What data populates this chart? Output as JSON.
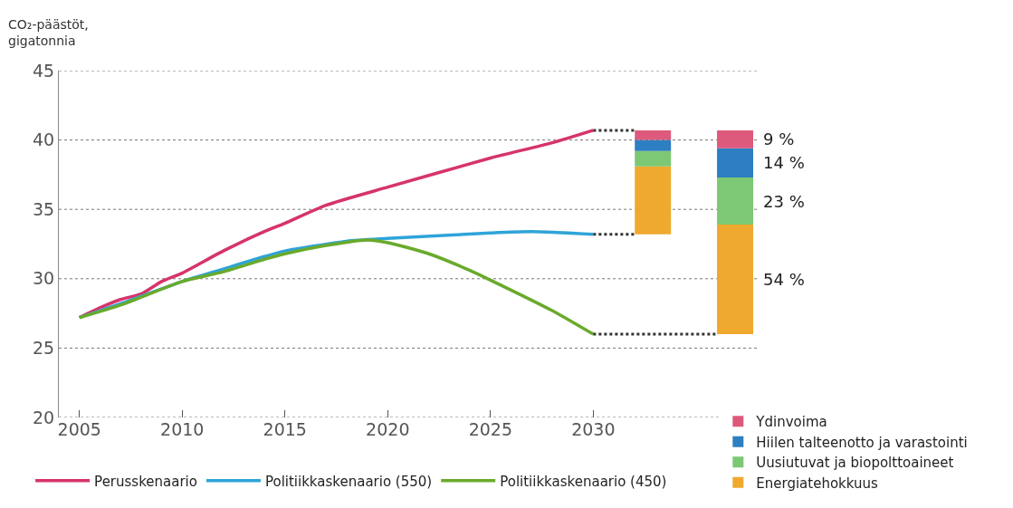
{
  "chart_data": {
    "type": "line",
    "ylabel": "CO₂-päästöt, gigatonnia",
    "xlim": [
      2004,
      2038
    ],
    "ylim": [
      20,
      45
    ],
    "xticks": [
      2005,
      2010,
      2015,
      2020,
      2025,
      2030
    ],
    "yticks": [
      20,
      25,
      30,
      35,
      40,
      45
    ],
    "grid": "y",
    "legend": "bottom",
    "line_style": "solid",
    "marker": "none",
    "series": [
      {
        "name": "Perusskenaario",
        "color": "#d6336c",
        "x": [
          2005,
          2006,
          2007,
          2008,
          2009,
          2010,
          2012,
          2014,
          2015,
          2017,
          2020,
          2025,
          2028,
          2030
        ],
        "values": [
          27.2,
          27.9,
          28.5,
          28.9,
          29.8,
          30.4,
          32.0,
          33.4,
          34.0,
          35.3,
          36.6,
          38.7,
          39.8,
          40.7
        ]
      },
      {
        "name": "Politiikkaskenaario (550)",
        "color": "#2ea4d8",
        "x": [
          2005,
          2007,
          2010,
          2012,
          2014,
          2015,
          2018,
          2020,
          2025,
          2027,
          2030
        ],
        "values": [
          27.2,
          28.2,
          29.8,
          30.7,
          31.6,
          32.0,
          32.7,
          32.9,
          33.3,
          33.4,
          33.2
        ]
      },
      {
        "name": "Politiikkaskenaario (450)",
        "color": "#6aaa2c",
        "x": [
          2005,
          2007,
          2010,
          2012,
          2014,
          2015,
          2017,
          2019,
          2020,
          2022,
          2024,
          2025,
          2028,
          2030
        ],
        "values": [
          27.2,
          28.1,
          29.8,
          30.5,
          31.4,
          31.8,
          32.4,
          32.8,
          32.6,
          31.8,
          30.6,
          29.9,
          27.7,
          26.0
        ]
      },
      {
        "color": "#333333",
        "line_style": "dotted",
        "x": [
          2030,
          2032
        ],
        "values": [
          40.7,
          40.7
        ]
      },
      {
        "color": "#333333",
        "line_style": "dotted",
        "x": [
          2030,
          2032
        ],
        "values": [
          33.2,
          33.2
        ]
      },
      {
        "color": "#333333",
        "line_style": "dotted",
        "x": [
          2030,
          2036
        ],
        "values": [
          26.0,
          26.0
        ]
      },
      {
        "type": "bar",
        "name": "Energiatehokkuus",
        "color": "#eea92e",
        "x": [
          2032.9,
          2036.9
        ],
        "base": [
          33.2,
          26.0
        ],
        "values": [
          4.9,
          7.9
        ]
      },
      {
        "type": "bar",
        "name": "Uusiutuvat ja biopolttoaineet",
        "color": "#7cc874",
        "x": [
          2032.9,
          2036.9
        ],
        "base": [
          38.1,
          33.9
        ],
        "values": [
          1.1,
          3.4
        ]
      },
      {
        "type": "bar",
        "name": "Hiilen talteenotto ja varastointi",
        "color": "#2d7fc1",
        "x": [
          2032.9,
          2036.9
        ],
        "base": [
          39.2,
          37.3
        ],
        "values": [
          0.8,
          2.1
        ]
      },
      {
        "type": "bar",
        "name": "Ydinvoima",
        "color": "#dd5a7c",
        "x": [
          2032.9,
          2036.9
        ],
        "base": [
          40.0,
          39.4
        ],
        "values": [
          0.7,
          1.3
        ]
      }
    ],
    "annotations": [
      "54 %",
      "23 %",
      "14 %",
      "9 %"
    ]
  }
}
